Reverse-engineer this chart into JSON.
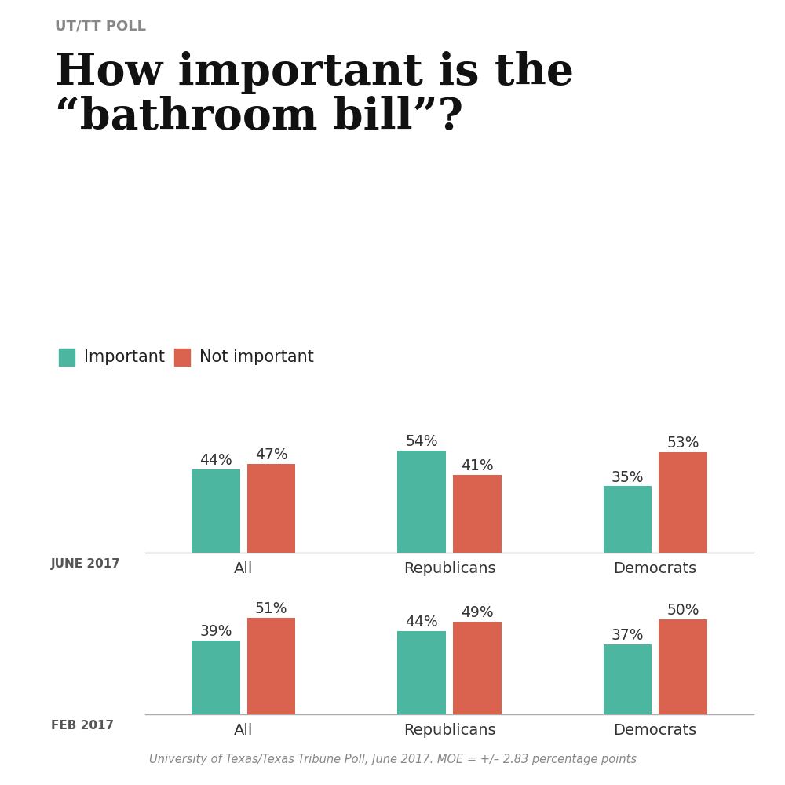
{
  "supertitle": "UT/TT POLL",
  "title_line1": "How important is the",
  "title_line2": "“bathroom bill”?",
  "legend_important": "Important",
  "legend_not_important": "Not important",
  "color_important": "#4db6a0",
  "color_not_important": "#d9634e",
  "categories": [
    "All",
    "Republicans",
    "Democrats"
  ],
  "june_important": [
    44,
    54,
    35
  ],
  "june_not_important": [
    47,
    41,
    53
  ],
  "feb_important": [
    39,
    44,
    37
  ],
  "feb_not_important": [
    51,
    49,
    50
  ],
  "june_label": "JUNE 2017",
  "feb_label": "FEB 2017",
  "footnote": "University of Texas/Texas Tribune Poll, June 2017. MOE = +/– 2.83 percentage points",
  "background_color": "#ffffff",
  "supertitle_color": "#888888",
  "title_color": "#111111",
  "label_color": "#555555",
  "category_color": "#333333",
  "bar_value_color": "#333333"
}
